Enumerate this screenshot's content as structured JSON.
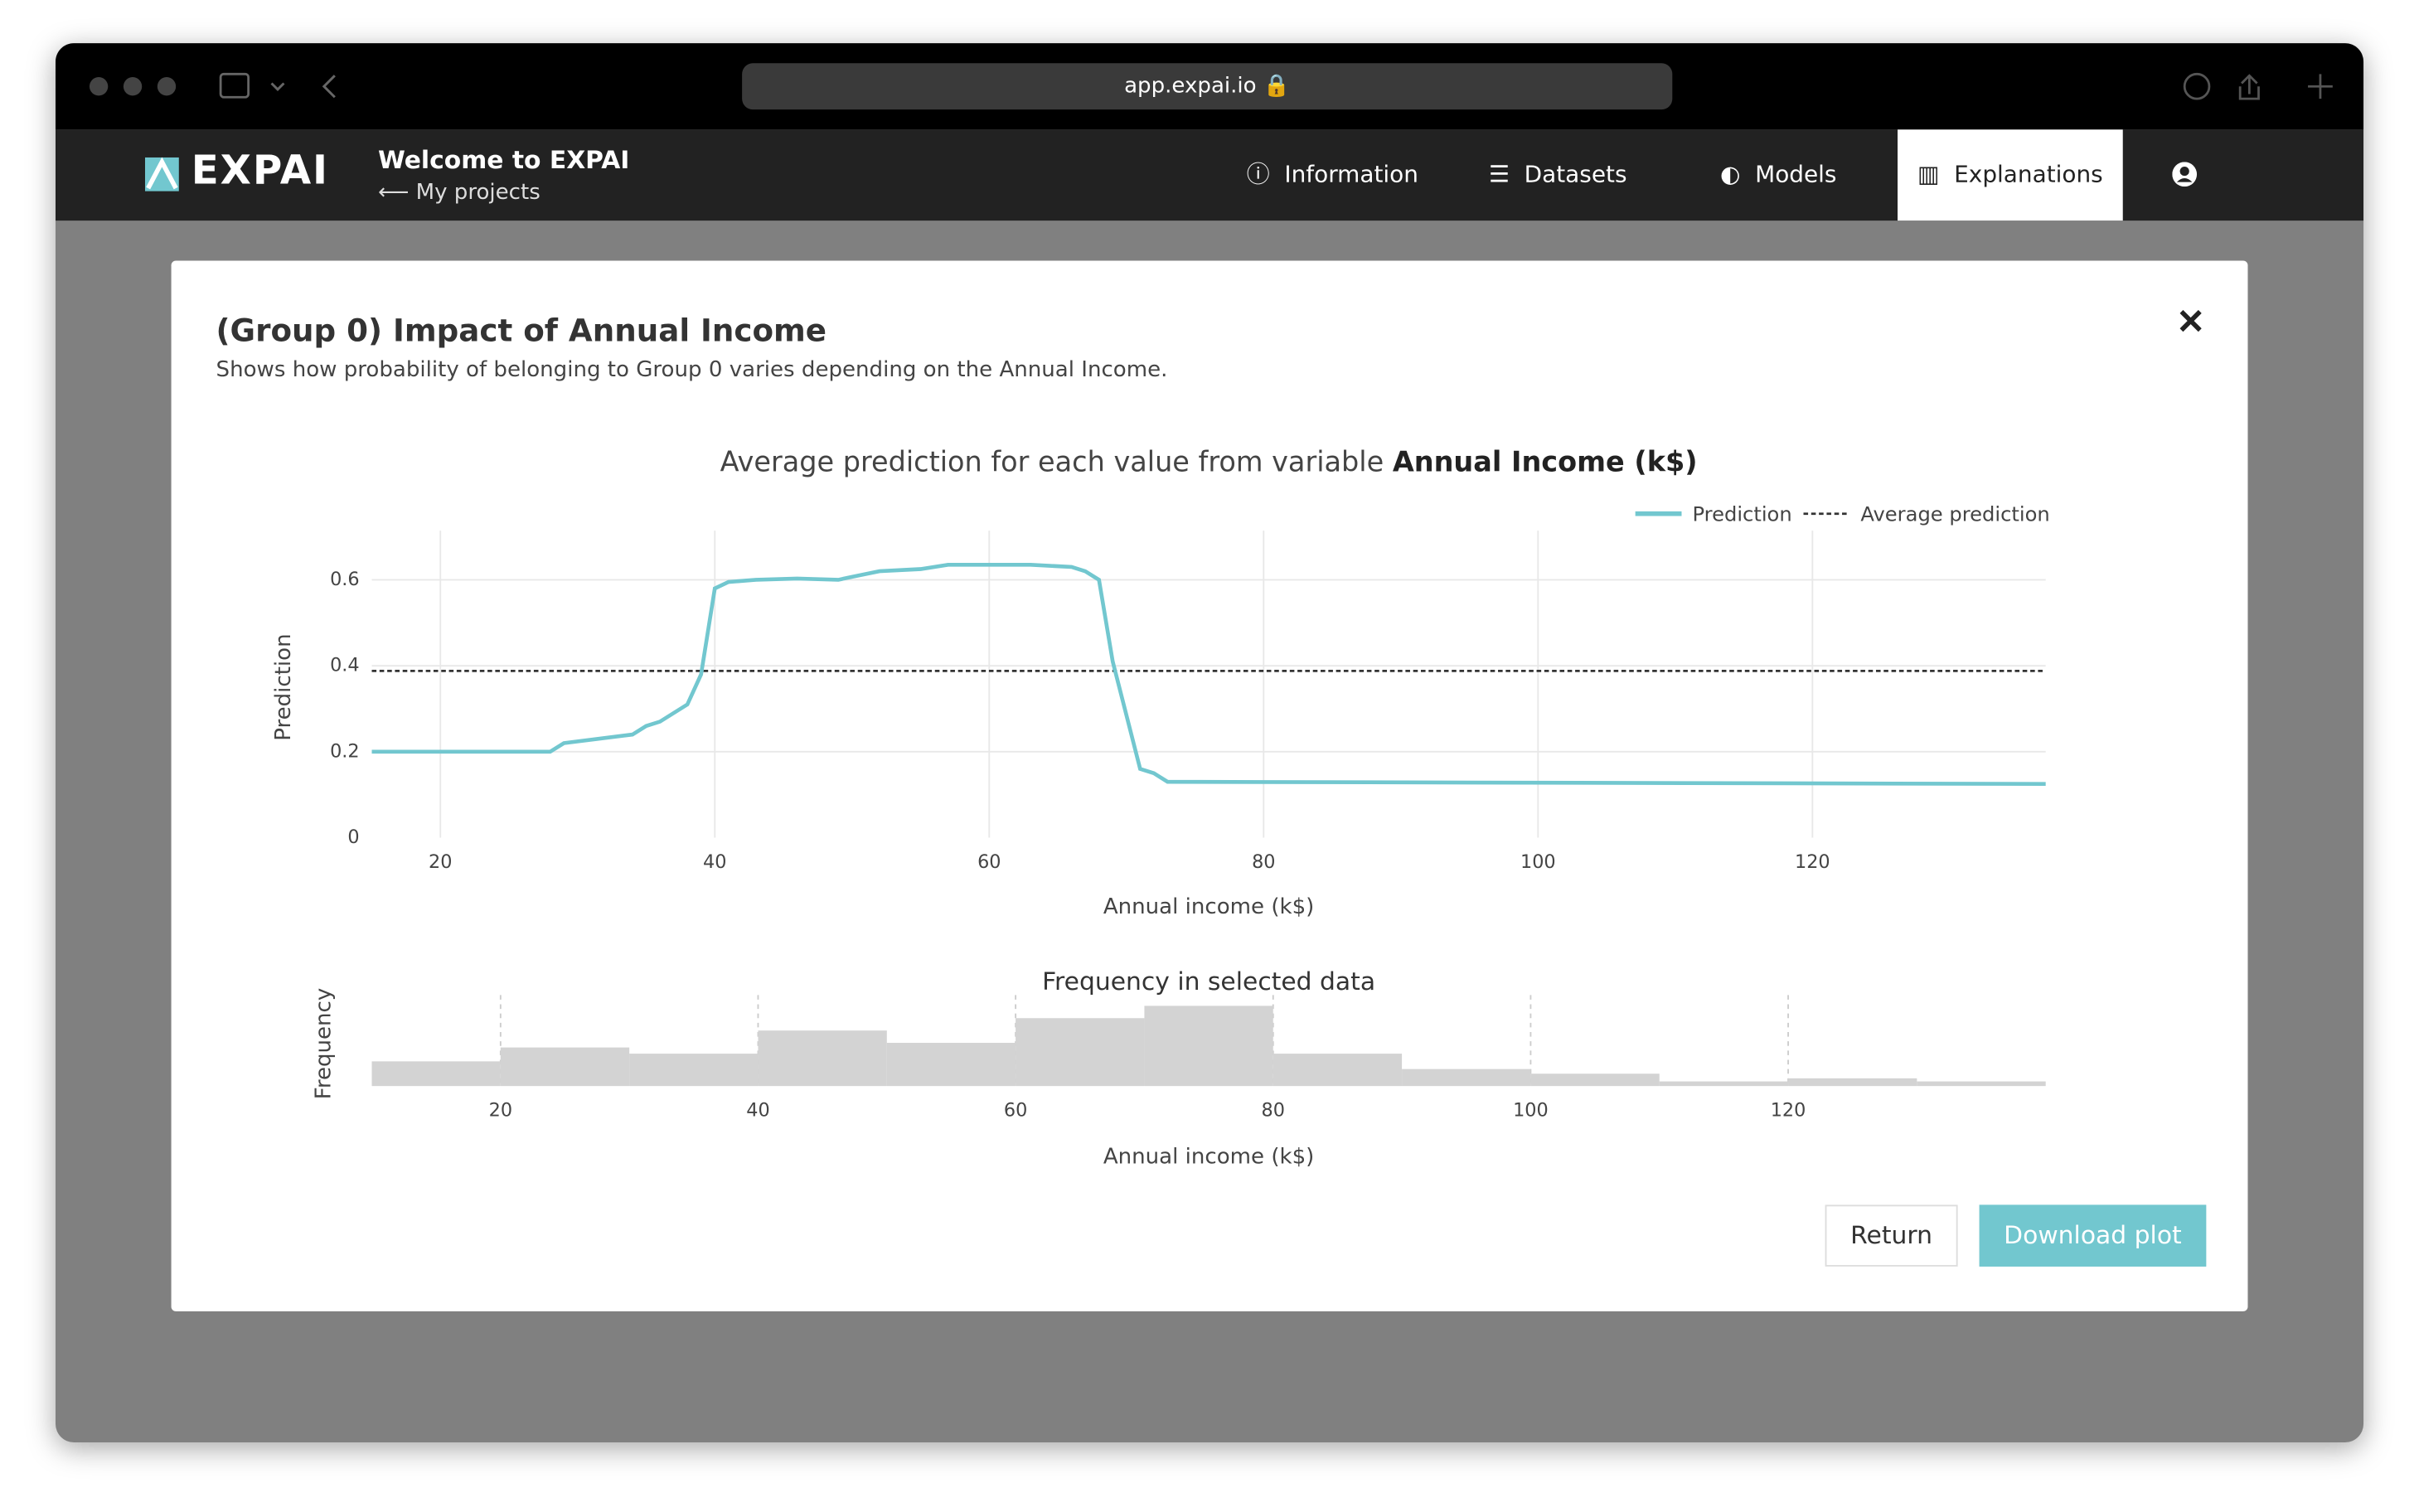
{
  "browser": {
    "url": "app.expai.io"
  },
  "app": {
    "logo": "EXPAI",
    "welcome": "Welcome to EXPAI",
    "back_link": "My projects",
    "nav": [
      "Information",
      "Datasets",
      "Models",
      "Explanations"
    ]
  },
  "modal": {
    "title": "(Group 0) Impact of Annual Income",
    "subtitle": "Shows how probability of belonging to Group 0 varies depending on the Annual Income.",
    "buttons": [
      "Return",
      "Download plot"
    ]
  },
  "chart_data": [
    {
      "type": "line",
      "title": "Average prediction for each value from variable ",
      "title_bold": "Annual Income (k$)",
      "x_label": "Annual income (k$)",
      "y_label": "Prediction",
      "x": [
        15,
        28,
        29,
        34,
        35,
        36,
        38,
        39,
        40,
        41,
        43,
        46,
        49,
        50,
        52,
        55,
        57,
        63,
        66,
        67,
        68,
        69,
        71,
        72,
        73,
        137
      ],
      "series": [
        {
          "name": "Prediction",
          "color": "#72c7cf",
          "values": [
            0.2,
            0.2,
            0.22,
            0.24,
            0.26,
            0.27,
            0.31,
            0.38,
            0.58,
            0.595,
            0.6,
            0.603,
            0.6,
            0.607,
            0.62,
            0.625,
            0.635,
            0.635,
            0.63,
            0.62,
            0.6,
            0.41,
            0.16,
            0.15,
            0.13,
            0.125
          ]
        }
      ],
      "average": {
        "name": "Average prediction",
        "value": 0.388,
        "color": "#333"
      },
      "xlim": [
        15,
        137
      ],
      "ylim": [
        0,
        0.7
      ],
      "xticks": [
        20,
        40,
        60,
        80,
        100,
        120
      ],
      "yticks": [
        0,
        0.2,
        0.4,
        0.6
      ],
      "grid": true,
      "legend": "top-right"
    },
    {
      "type": "histogram",
      "title": "Frequency in selected data",
      "x_label": "Annual income (k$)",
      "y_label": "Frequency",
      "bins": [
        10,
        20,
        30,
        40,
        50,
        60,
        70,
        80,
        90,
        100,
        110,
        120,
        130,
        140
      ],
      "values": [
        16,
        25,
        21,
        36,
        28,
        44,
        52,
        21,
        11,
        8,
        3,
        5,
        3
      ],
      "color": "#d3d3d3",
      "xlim": [
        10,
        140
      ],
      "ylim": [
        0,
        55
      ],
      "xticks": [
        20,
        40,
        60,
        80,
        100,
        120
      ],
      "grid": true
    }
  ]
}
